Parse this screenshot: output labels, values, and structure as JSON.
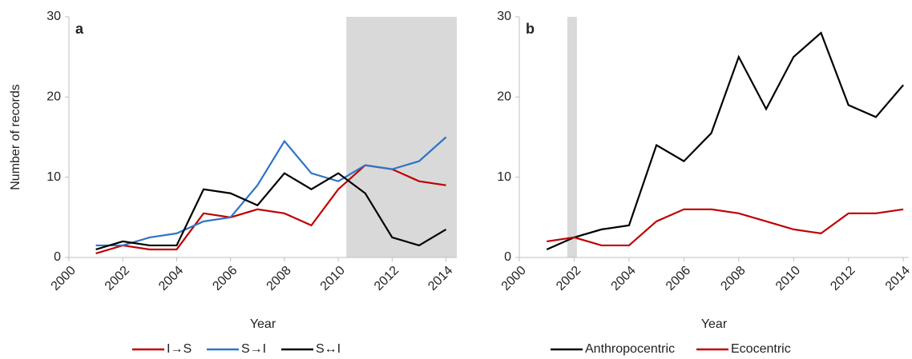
{
  "chart_data": [
    {
      "type": "line",
      "panel_label": "a",
      "ylabel": "Number of records",
      "xlabel": "Year",
      "x": [
        2001,
        2002,
        2003,
        2004,
        2005,
        2006,
        2007,
        2008,
        2009,
        2010,
        2011,
        2012,
        2013,
        2014
      ],
      "xlim": [
        2000,
        2014.4
      ],
      "xticks": [
        2000,
        2002,
        2004,
        2006,
        2008,
        2010,
        2012,
        2014
      ],
      "ylim": [
        0,
        30
      ],
      "yticks": [
        0,
        10,
        20,
        30
      ],
      "shaded_span": [
        2010.3,
        2014.4
      ],
      "shade_color": "#d9d9d9",
      "series": [
        {
          "name": "I→S",
          "color": "#c00000",
          "values": [
            0.5,
            1.5,
            1,
            1,
            5.5,
            5,
            6,
            5.5,
            4,
            8.5,
            11.5,
            11,
            9.5,
            9
          ]
        },
        {
          "name": "S→I",
          "color": "#2e75c6",
          "values": [
            1.5,
            1.5,
            2.5,
            3,
            4.5,
            5,
            9,
            14.5,
            10.5,
            9.5,
            11.5,
            11,
            12,
            15
          ]
        },
        {
          "name": "S↔I",
          "color": "#000000",
          "values": [
            1,
            2,
            1.5,
            1.5,
            8.5,
            8,
            6.5,
            10.5,
            8.5,
            10.5,
            8,
            2.5,
            1.5,
            3.5
          ]
        }
      ]
    },
    {
      "type": "line",
      "panel_label": "b",
      "xlabel": "Year",
      "x": [
        2001,
        2002,
        2003,
        2004,
        2005,
        2006,
        2007,
        2008,
        2009,
        2010,
        2011,
        2012,
        2013,
        2014
      ],
      "xlim": [
        2000,
        2014.2
      ],
      "xticks": [
        2000,
        2002,
        2004,
        2006,
        2008,
        2010,
        2012,
        2014
      ],
      "ylim": [
        0,
        30
      ],
      "yticks": [
        0,
        10,
        20,
        30
      ],
      "shaded_span": [
        2001.75,
        2002.1
      ],
      "shade_color": "#d9d9d9",
      "series": [
        {
          "name": "Anthropocentric",
          "color": "#000000",
          "values": [
            1,
            2.5,
            3.5,
            4,
            14,
            12,
            15.5,
            25,
            18.5,
            25,
            28,
            19,
            17.5,
            21.5
          ]
        },
        {
          "name": "Ecocentric",
          "color": "#c00000",
          "values": [
            2,
            2.5,
            1.5,
            1.5,
            4.5,
            6,
            6,
            5.5,
            4.5,
            3.5,
            3,
            5.5,
            5.5,
            6
          ]
        }
      ]
    }
  ]
}
